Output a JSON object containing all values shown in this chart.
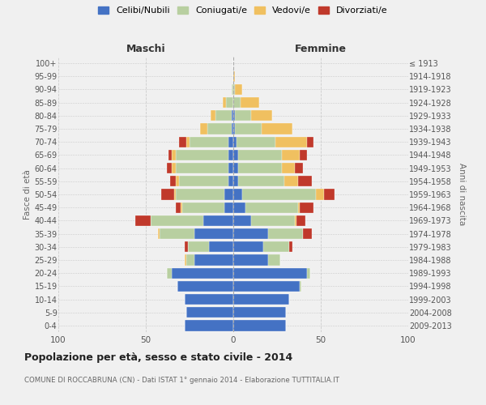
{
  "age_groups": [
    "100+",
    "95-99",
    "90-94",
    "85-89",
    "80-84",
    "75-79",
    "70-74",
    "65-69",
    "60-64",
    "55-59",
    "50-54",
    "45-49",
    "40-44",
    "35-39",
    "30-34",
    "25-29",
    "20-24",
    "15-19",
    "10-14",
    "5-9",
    "0-4"
  ],
  "birth_years": [
    "≤ 1913",
    "1914-1918",
    "1919-1923",
    "1924-1928",
    "1929-1933",
    "1934-1938",
    "1939-1943",
    "1944-1948",
    "1949-1953",
    "1954-1958",
    "1959-1963",
    "1964-1968",
    "1969-1973",
    "1974-1978",
    "1979-1983",
    "1984-1988",
    "1989-1993",
    "1994-1998",
    "1999-2003",
    "2004-2008",
    "2009-2013"
  ],
  "maschi": {
    "celibi": [
      0,
      0,
      0,
      0,
      1,
      1,
      3,
      3,
      3,
      3,
      5,
      5,
      17,
      22,
      14,
      22,
      35,
      32,
      28,
      27,
      28
    ],
    "coniugati": [
      0,
      0,
      1,
      4,
      9,
      14,
      22,
      30,
      30,
      28,
      28,
      24,
      30,
      20,
      12,
      5,
      3,
      0,
      0,
      0,
      0
    ],
    "vedovi": [
      0,
      0,
      0,
      2,
      3,
      4,
      2,
      2,
      2,
      2,
      1,
      1,
      0,
      1,
      0,
      1,
      0,
      0,
      0,
      0,
      0
    ],
    "divorziati": [
      0,
      0,
      0,
      0,
      0,
      0,
      4,
      2,
      3,
      3,
      7,
      3,
      9,
      0,
      2,
      0,
      0,
      0,
      0,
      0,
      0
    ]
  },
  "femmine": {
    "nubili": [
      0,
      0,
      0,
      0,
      1,
      1,
      2,
      3,
      3,
      3,
      5,
      7,
      10,
      20,
      17,
      20,
      42,
      38,
      32,
      30,
      30
    ],
    "coniugate": [
      0,
      0,
      1,
      4,
      9,
      15,
      22,
      25,
      25,
      26,
      42,
      30,
      25,
      20,
      15,
      7,
      2,
      1,
      0,
      0,
      0
    ],
    "vedove": [
      0,
      1,
      4,
      11,
      12,
      18,
      18,
      10,
      7,
      8,
      5,
      1,
      1,
      0,
      0,
      0,
      0,
      0,
      0,
      0,
      0
    ],
    "divorziate": [
      0,
      0,
      0,
      0,
      0,
      0,
      4,
      4,
      5,
      8,
      6,
      8,
      5,
      5,
      2,
      0,
      0,
      0,
      0,
      0,
      0
    ]
  },
  "colors": {
    "celibi": "#4472c4",
    "coniugati": "#b8cfa0",
    "vedovi": "#f0c060",
    "divorziati": "#c0392b"
  },
  "xlim": 100,
  "title": "Popolazione per età, sesso e stato civile - 2014",
  "subtitle": "COMUNE DI ROCCABRUNA (CN) - Dati ISTAT 1° gennaio 2014 - Elaborazione TUTTITALIA.IT",
  "label_maschi": "Maschi",
  "label_femmine": "Femmine",
  "ylabel_left": "Fasce di età",
  "ylabel_right": "Anni di nascita",
  "legend_labels": [
    "Celibi/Nubili",
    "Coniugati/e",
    "Vedovi/e",
    "Divorziati/e"
  ],
  "bg_color": "#f0f0f0"
}
